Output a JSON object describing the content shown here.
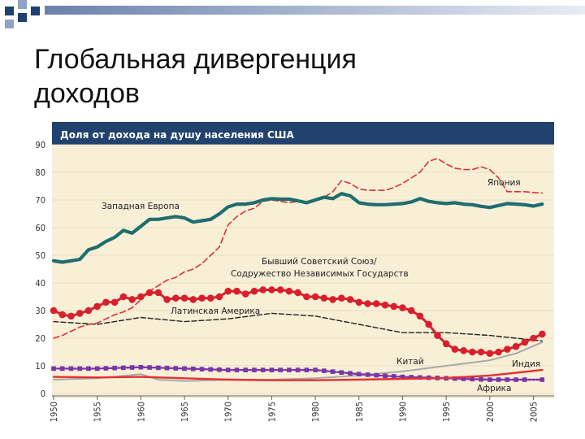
{
  "slide": {
    "title_line1": "Глобальная дивергенция",
    "title_line2": "доходов"
  },
  "colors": {
    "header_band": "#21426e",
    "plot_bg": "#f8efd7",
    "square_dark": "#1f3f6e",
    "square_light": "#8fa3c7",
    "western_europe": "#1f6e6e",
    "japan": "#d9323a",
    "former_ussr": "#d8202c",
    "latin_america": "#222222",
    "china": "#a9a9a9",
    "india": "#e53030",
    "africa": "#7a35a8"
  },
  "chart_data": {
    "type": "line",
    "title": "Доля от дохода на душу населения США",
    "ylim": [
      0,
      90
    ],
    "yticks": [
      0,
      10,
      20,
      30,
      40,
      50,
      60,
      70,
      80,
      90
    ],
    "xlim": [
      1950,
      2007
    ],
    "xticks": [
      1950,
      1955,
      1960,
      1965,
      1970,
      1975,
      1980,
      1985,
      1990,
      1995,
      2000,
      2005
    ],
    "series": [
      {
        "name": "Западная Европа",
        "style": "solid-thick",
        "x": [
          1950,
          1951,
          1952,
          1953,
          1954,
          1955,
          1956,
          1957,
          1958,
          1959,
          1960,
          1961,
          1962,
          1963,
          1964,
          1965,
          1966,
          1967,
          1968,
          1969,
          1970,
          1971,
          1972,
          1973,
          1974,
          1975,
          1976,
          1977,
          1978,
          1979,
          1980,
          1981,
          1982,
          1983,
          1984,
          1985,
          1986,
          1987,
          1988,
          1989,
          1990,
          1991,
          1992,
          1993,
          1994,
          1995,
          1996,
          1997,
          1998,
          1999,
          2000,
          2001,
          2002,
          2003,
          2004,
          2005,
          2006
        ],
        "values": [
          48,
          47.5,
          48,
          48.5,
          52,
          53,
          55,
          56.5,
          59,
          58,
          60.5,
          63,
          63,
          63.5,
          64,
          63.5,
          62,
          62.5,
          63,
          65,
          67.5,
          68.5,
          68.5,
          69,
          70,
          70.5,
          70.3,
          70.3,
          69.7,
          69,
          70,
          71,
          70.5,
          72.3,
          71.5,
          69,
          68.5,
          68.3,
          68.3,
          68.5,
          68.7,
          69.3,
          70.5,
          69.5,
          69,
          68.7,
          69,
          68.5,
          68.3,
          67.7,
          67.3,
          68,
          68.7,
          68.5,
          68.3,
          67.8,
          68.5
        ]
      },
      {
        "name": "Япония",
        "style": "dashed",
        "x": [
          1950,
          1951,
          1952,
          1953,
          1954,
          1955,
          1956,
          1957,
          1958,
          1959,
          1960,
          1961,
          1962,
          1963,
          1964,
          1965,
          1966,
          1967,
          1968,
          1969,
          1970,
          1971,
          1972,
          1973,
          1974,
          1975,
          1976,
          1977,
          1978,
          1979,
          1980,
          1981,
          1982,
          1983,
          1984,
          1985,
          1986,
          1987,
          1988,
          1989,
          1990,
          1991,
          1992,
          1993,
          1994,
          1995,
          1996,
          1997,
          1998,
          1999,
          2000,
          2001,
          2002,
          2003,
          2004,
          2005,
          2006
        ],
        "values": [
          20,
          21,
          22.5,
          24,
          25,
          25.5,
          27,
          28.5,
          29.5,
          31,
          34,
          37,
          39,
          41,
          42,
          44,
          45,
          47,
          50,
          53,
          61,
          64,
          66,
          67,
          69.5,
          70,
          69.5,
          69,
          69.5,
          69.5,
          70,
          71,
          73,
          77,
          76,
          74,
          73.5,
          73.5,
          73.5,
          74.5,
          76,
          78,
          80,
          84,
          85,
          83,
          81.5,
          81,
          81,
          82,
          81,
          78,
          73,
          73,
          73,
          72.7,
          72.5
        ]
      },
      {
        "name": "Бывший Советский Союз/ Содружество Независимых Государств",
        "style": "solid-dots",
        "x": [
          1950,
          1951,
          1952,
          1953,
          1954,
          1955,
          1956,
          1957,
          1958,
          1959,
          1960,
          1961,
          1962,
          1963,
          1964,
          1965,
          1966,
          1967,
          1968,
          1969,
          1970,
          1971,
          1972,
          1973,
          1974,
          1975,
          1976,
          1977,
          1978,
          1979,
          1980,
          1981,
          1982,
          1983,
          1984,
          1985,
          1986,
          1987,
          1988,
          1989,
          1990,
          1991,
          1992,
          1993,
          1994,
          1995,
          1996,
          1997,
          1998,
          1999,
          2000,
          2001,
          2002,
          2003,
          2004,
          2005,
          2006
        ],
        "values": [
          30,
          28.5,
          28,
          29,
          30,
          31.5,
          33,
          33,
          35,
          34,
          35,
          36.5,
          36.5,
          34,
          34.5,
          34.5,
          34,
          34.5,
          34.5,
          35,
          37,
          37,
          36,
          37,
          37.5,
          37.5,
          37.5,
          37,
          36.5,
          35,
          35,
          34.5,
          34,
          34.5,
          34,
          33,
          32.5,
          32.5,
          32,
          31.5,
          31,
          30,
          28,
          25,
          21,
          18,
          16,
          15.5,
          15,
          15,
          14.5,
          15,
          16,
          17,
          18.5,
          20,
          21.5
        ]
      },
      {
        "name": "Латинская Америка",
        "style": "dashed-black",
        "x": [
          1950,
          1955,
          1960,
          1965,
          1970,
          1975,
          1980,
          1985,
          1990,
          1995,
          2000,
          2006
        ],
        "values": [
          26,
          25,
          27.5,
          26,
          27,
          29,
          28,
          25,
          22,
          22,
          21,
          19
        ]
      },
      {
        "name": "Китай",
        "style": "solid-gray",
        "x": [
          1950,
          1955,
          1960,
          1962,
          1965,
          1970,
          1975,
          1980,
          1985,
          1990,
          1995,
          2000,
          2003,
          2006
        ],
        "values": [
          5,
          5.5,
          7,
          5,
          4.5,
          5,
          5,
          5.5,
          6.5,
          8,
          10,
          12,
          14.5,
          18.5
        ]
      },
      {
        "name": "Индия",
        "style": "solid-red",
        "x": [
          1950,
          1955,
          1960,
          1965,
          1970,
          1975,
          1980,
          1985,
          1990,
          1995,
          2000,
          2006
        ],
        "values": [
          6,
          5.8,
          6,
          5.5,
          5,
          4.8,
          4.8,
          5,
          5.3,
          5.6,
          6.5,
          8.5
        ]
      },
      {
        "name": "Африка",
        "style": "dashed-squares",
        "x": [
          1950,
          1955,
          1960,
          1965,
          1970,
          1975,
          1980,
          1985,
          1990,
          1995,
          2000,
          2006
        ],
        "values": [
          9,
          9,
          9.5,
          9,
          8.5,
          8.5,
          8.5,
          7,
          6,
          5.5,
          5,
          5
        ]
      }
    ]
  }
}
